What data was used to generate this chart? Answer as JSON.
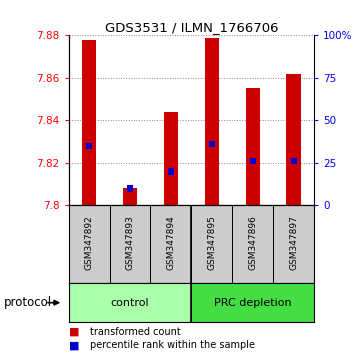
{
  "title": "GDS3531 / ILMN_1766706",
  "samples": [
    "GSM347892",
    "GSM347893",
    "GSM347894",
    "GSM347895",
    "GSM347896",
    "GSM347897"
  ],
  "bar_tops": [
    7.878,
    7.808,
    7.844,
    7.879,
    7.855,
    7.862
  ],
  "bar_base": 7.8,
  "blue_markers": [
    7.828,
    7.808,
    7.816,
    7.829,
    7.821,
    7.821
  ],
  "ylim_left": [
    7.8,
    7.88
  ],
  "yticks_left": [
    7.8,
    7.82,
    7.84,
    7.86,
    7.88
  ],
  "ylim_right": [
    0,
    100
  ],
  "yticks_right": [
    0,
    25,
    50,
    75,
    100
  ],
  "yticklabels_right": [
    "0",
    "25",
    "50",
    "75",
    "100%"
  ],
  "groups": [
    {
      "label": "control",
      "samples": [
        0,
        1,
        2
      ],
      "color": "#aaffaa"
    },
    {
      "label": "PRC depletion",
      "samples": [
        3,
        4,
        5
      ],
      "color": "#44dd44"
    }
  ],
  "bar_color": "#cc0000",
  "blue_color": "#0000cc",
  "bar_width": 0.35,
  "bg_color": "#ffffff",
  "grid_color": "#888888",
  "sample_bg_color": "#cccccc",
  "legend_red_label": "transformed count",
  "legend_blue_label": "percentile rank within the sample",
  "protocol_label": "protocol"
}
